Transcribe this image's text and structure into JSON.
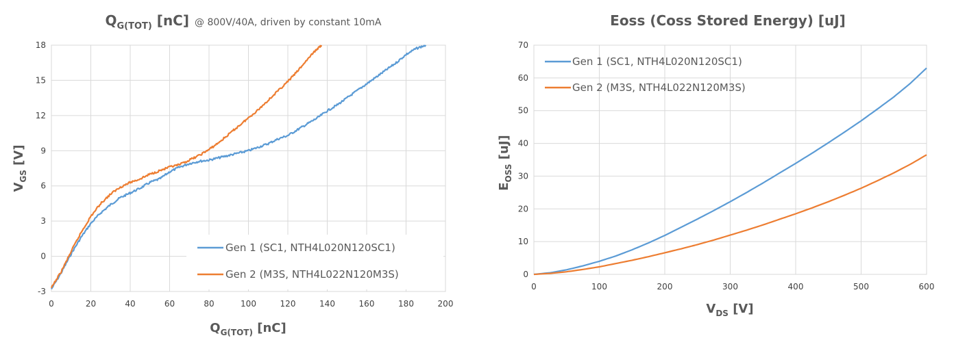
{
  "chart_data": [
    {
      "type": "line",
      "title": {
        "main": "Q",
        "main_sub": "G(TOT)",
        "main_suffix": " [nC]",
        "note": "@ 800V/40A, driven by constant 10mA"
      },
      "xlabel": {
        "main": "Q",
        "sub": "G(TOT)",
        "suffix": " [nC]"
      },
      "ylabel": {
        "main": "V",
        "sub": "GS",
        "suffix": " [V]"
      },
      "xlim": [
        0,
        200
      ],
      "ylim": [
        -3,
        18
      ],
      "xticks": [
        "0",
        "20",
        "40",
        "60",
        "80",
        "100",
        "120",
        "140",
        "160",
        "180",
        "200"
      ],
      "yticks": [
        "-3",
        "0",
        "3",
        "6",
        "9",
        "12",
        "15",
        "18"
      ],
      "grid": true,
      "legend_position": "bottom-right",
      "series": [
        {
          "name": "Gen 1 (SC1, NTH4L020N120SC1)",
          "color": "#5b9bd5",
          "x": [
            0,
            5,
            10,
            15,
            20,
            25,
            30,
            35,
            40,
            45,
            50,
            55,
            60,
            65,
            70,
            75,
            80,
            85,
            90,
            95,
            100,
            105,
            110,
            115,
            120,
            125,
            130,
            135,
            140,
            145,
            150,
            155,
            160,
            165,
            170,
            175,
            180,
            185,
            190
          ],
          "y": [
            -2.8,
            -1.4,
            0.2,
            1.6,
            2.8,
            3.7,
            4.4,
            5.0,
            5.4,
            5.8,
            6.3,
            6.6,
            7.2,
            7.6,
            7.9,
            8.1,
            8.2,
            8.4,
            8.6,
            8.8,
            9.0,
            9.3,
            9.6,
            10.0,
            10.3,
            10.8,
            11.3,
            11.8,
            12.4,
            12.9,
            13.5,
            14.1,
            14.7,
            15.3,
            15.9,
            16.5,
            17.2,
            17.7,
            18.0
          ]
        },
        {
          "name": "Gen 2 (M3S, NTH4L022N120M3S)",
          "color": "#ed7d31",
          "x": [
            0,
            5,
            10,
            15,
            20,
            25,
            30,
            35,
            40,
            45,
            50,
            55,
            60,
            65,
            70,
            75,
            80,
            85,
            90,
            95,
            100,
            105,
            110,
            115,
            120,
            125,
            130,
            135,
            137
          ],
          "y": [
            -2.7,
            -1.3,
            0.4,
            2.0,
            3.4,
            4.5,
            5.3,
            5.9,
            6.3,
            6.6,
            7.0,
            7.3,
            7.6,
            7.8,
            8.2,
            8.6,
            9.1,
            9.7,
            10.4,
            11.1,
            11.8,
            12.5,
            13.3,
            14.1,
            14.9,
            15.8,
            16.8,
            17.7,
            18.0
          ]
        }
      ]
    },
    {
      "type": "line",
      "title": {
        "main": "Eoss (Coss Stored Energy) [uJ]"
      },
      "xlabel": {
        "main": "V",
        "sub": "DS",
        "suffix": " [V]"
      },
      "ylabel": {
        "main": "E",
        "sub": "OSS",
        "suffix": " [uJ]"
      },
      "xlim": [
        0,
        600
      ],
      "ylim": [
        0,
        70
      ],
      "xticks": [
        "0",
        "100",
        "200",
        "300",
        "400",
        "500",
        "600"
      ],
      "yticks": [
        "0",
        "10",
        "20",
        "30",
        "40",
        "50",
        "60",
        "70"
      ],
      "grid": true,
      "legend_position": "top-left",
      "series": [
        {
          "name": "Gen 1 (SC1, NTH4L020N120SC1)",
          "color": "#5b9bd5",
          "x": [
            0,
            25,
            50,
            75,
            100,
            125,
            150,
            175,
            200,
            225,
            250,
            275,
            300,
            325,
            350,
            375,
            400,
            425,
            450,
            475,
            500,
            525,
            550,
            575,
            600
          ],
          "y": [
            0,
            0.5,
            1.4,
            2.6,
            4.0,
            5.6,
            7.5,
            9.6,
            11.9,
            14.4,
            16.9,
            19.5,
            22.2,
            25.0,
            27.9,
            30.9,
            33.9,
            37.0,
            40.2,
            43.5,
            46.9,
            50.5,
            54.2,
            58.3,
            63.0
          ]
        },
        {
          "name": "Gen 2 (M3S, NTH4L022N120M3S)",
          "color": "#ed7d31",
          "x": [
            0,
            25,
            50,
            75,
            100,
            125,
            150,
            175,
            200,
            225,
            250,
            275,
            300,
            325,
            350,
            375,
            400,
            425,
            450,
            475,
            500,
            525,
            550,
            575,
            600
          ],
          "y": [
            0,
            0.3,
            0.8,
            1.5,
            2.3,
            3.3,
            4.3,
            5.4,
            6.6,
            7.8,
            9.1,
            10.5,
            12.0,
            13.5,
            15.1,
            16.8,
            18.5,
            20.3,
            22.2,
            24.2,
            26.3,
            28.6,
            31.0,
            33.6,
            36.5
          ]
        }
      ]
    }
  ]
}
